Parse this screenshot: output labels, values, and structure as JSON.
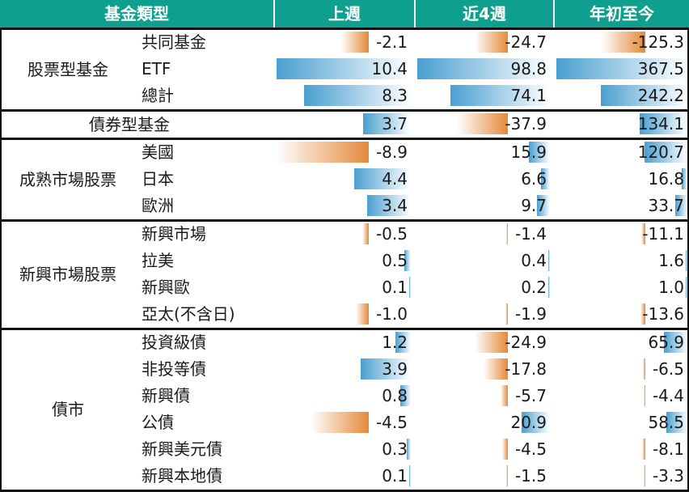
{
  "chart_data": {
    "type": "table",
    "headers": [
      "基金類型",
      "上週",
      "近4週",
      "年初至今"
    ],
    "colors": {
      "header_bg": "#0e9f8f",
      "positive": "#4a9fd0",
      "negative": "#e4893a"
    },
    "groups": [
      {
        "name": "股票型基金",
        "rows": [
          {
            "label": "共同基金",
            "week": "-2.1",
            "week4": "-24.7",
            "ytd": "-125.3"
          },
          {
            "label": "ETF",
            "week": "10.4",
            "week4": "98.8",
            "ytd": "367.5"
          },
          {
            "label": "總計",
            "week": "8.3",
            "week4": "74.1",
            "ytd": "242.2"
          }
        ]
      },
      {
        "name": "債券型基金",
        "rows": [
          {
            "label": "",
            "week": "3.7",
            "week4": "-37.9",
            "ytd": "134.1"
          }
        ]
      },
      {
        "name": "成熟市場股票",
        "rows": [
          {
            "label": "美國",
            "week": "-8.9",
            "week4": "15.9",
            "ytd": "120.7"
          },
          {
            "label": "日本",
            "week": "4.4",
            "week4": "6.6",
            "ytd": "16.8"
          },
          {
            "label": "歐洲",
            "week": "3.4",
            "week4": "9.7",
            "ytd": "33.7"
          }
        ]
      },
      {
        "name": "新興市場股票",
        "rows": [
          {
            "label": "新興市場",
            "week": "-0.5",
            "week4": "-1.4",
            "ytd": "-11.1"
          },
          {
            "label": "拉美",
            "week": "0.5",
            "week4": "0.4",
            "ytd": "1.6"
          },
          {
            "label": "新興歐",
            "week": "0.1",
            "week4": "0.2",
            "ytd": "1.0"
          },
          {
            "label": "亞太(不含日)",
            "week": "-1.0",
            "week4": "-1.9",
            "ytd": "-13.6"
          }
        ]
      },
      {
        "name": "債市",
        "rows": [
          {
            "label": "投資級債",
            "week": "1.2",
            "week4": "-24.9",
            "ytd": "65.9"
          },
          {
            "label": "非投等債",
            "week": "3.9",
            "week4": "-17.8",
            "ytd": "-6.5"
          },
          {
            "label": "新興債",
            "week": "0.8",
            "week4": "-5.7",
            "ytd": "-4.4"
          },
          {
            "label": "公債",
            "week": "-4.5",
            "week4": "20.9",
            "ytd": "58.5"
          },
          {
            "label": "新興美元債",
            "week": "0.3",
            "week4": "-4.5",
            "ytd": "-8.1"
          },
          {
            "label": "新興本地債",
            "week": "0.1",
            "week4": "-1.5",
            "ytd": "-3.3"
          }
        ]
      }
    ]
  }
}
